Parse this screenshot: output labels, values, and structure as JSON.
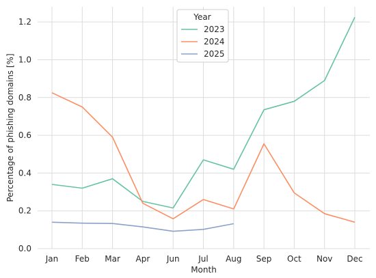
{
  "chart_data": {
    "type": "line",
    "xlabel": "Month",
    "ylabel": "Percentage of phishing domains [%]",
    "categories": [
      "Jan",
      "Feb",
      "Mar",
      "Apr",
      "Jun",
      "Jul",
      "Aug",
      "Sep",
      "Oct",
      "Nov",
      "Dec"
    ],
    "ylim": [
      0,
      1.28
    ],
    "yticks": [
      "0.0",
      "0.2",
      "0.4",
      "0.6",
      "0.8",
      "1.0",
      "1.2"
    ],
    "grid": true,
    "legend": {
      "title": "Year",
      "placement": "top-center"
    },
    "series": [
      {
        "name": "2023",
        "color": "#66c2a5",
        "values": [
          0.34,
          0.32,
          0.37,
          0.25,
          0.215,
          0.47,
          0.42,
          0.735,
          0.78,
          0.89,
          1.225
        ]
      },
      {
        "name": "2024",
        "color": "#fc8d62",
        "values": [
          0.825,
          0.75,
          0.59,
          0.24,
          0.158,
          0.26,
          0.21,
          0.555,
          0.295,
          0.185,
          0.14
        ]
      },
      {
        "name": "2025",
        "color": "#8da0cb",
        "values": [
          0.14,
          0.135,
          0.133,
          0.115,
          0.092,
          0.102,
          0.132,
          null,
          null,
          null,
          null
        ]
      }
    ]
  }
}
